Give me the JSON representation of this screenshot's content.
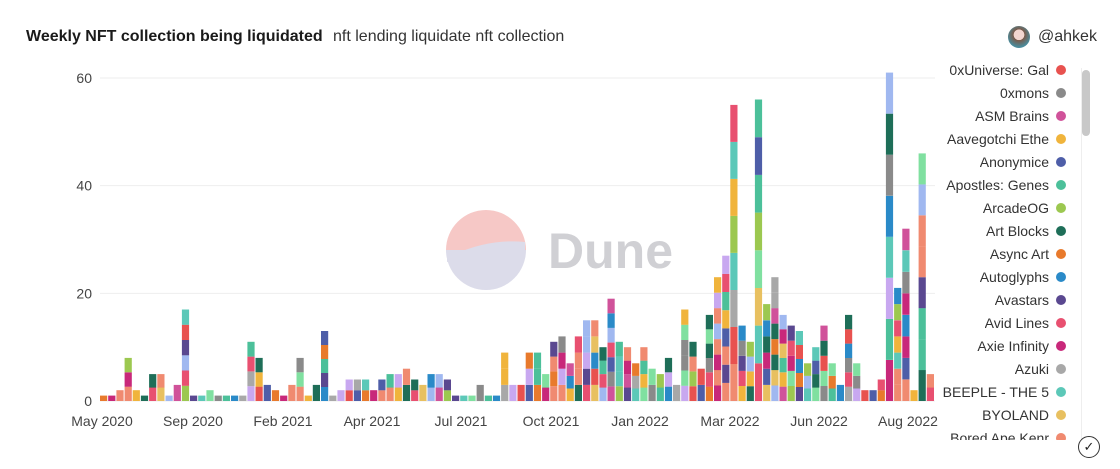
{
  "header": {
    "title": "Weekly NFT collection being liquidated",
    "subtitle": "nft lending liquidate nft collection",
    "author": "@ahkek"
  },
  "watermark": "Dune",
  "legend": [
    {
      "name": "0xUniverse: Gal",
      "color": "#e8524f"
    },
    {
      "name": "0xmons",
      "color": "#8a8a8a"
    },
    {
      "name": "ASM Brains",
      "color": "#d0529a"
    },
    {
      "name": "Aavegotchi Ethe",
      "color": "#f0b43c"
    },
    {
      "name": "Anonymice",
      "color": "#4e5ea8"
    },
    {
      "name": "Apostles: Genes",
      "color": "#4cc09a"
    },
    {
      "name": "ArcadeOG",
      "color": "#9cc850"
    },
    {
      "name": "Art Blocks",
      "color": "#1e6e58"
    },
    {
      "name": "Async Art",
      "color": "#e87a2c"
    },
    {
      "name": "Autoglyphs",
      "color": "#2a8ac8"
    },
    {
      "name": "Avastars",
      "color": "#5a4890"
    },
    {
      "name": "Avid Lines",
      "color": "#e85070"
    },
    {
      "name": "Axie Infinity",
      "color": "#c8287a"
    },
    {
      "name": "Azuki",
      "color": "#a8a8a8"
    },
    {
      "name": "BEEPLE - THE 5",
      "color": "#5cc8b8"
    },
    {
      "name": "BYOLAND",
      "color": "#e8c060"
    },
    {
      "name": "Bored Ape Kenr",
      "color": "#f08a70"
    }
  ],
  "chart_data": {
    "type": "bar",
    "stacked": true,
    "title": "Weekly NFT collection being liquidated",
    "xlabel": "",
    "ylabel": "",
    "ylim": [
      0,
      62
    ],
    "yticks": [
      0,
      20,
      40,
      60
    ],
    "xtick_labels": [
      "May 2020",
      "Sep 2020",
      "Feb 2021",
      "Apr 2021",
      "Jul 2021",
      "Oct 2021",
      "Jan 2022",
      "Mar 2022",
      "Jun 2022",
      "Aug 2022"
    ],
    "grid": true,
    "legend_position": "right",
    "weekly_totals": [
      1,
      1,
      2,
      8,
      2,
      1,
      5,
      5,
      1,
      3,
      17,
      1,
      1,
      2,
      1,
      1,
      1,
      1,
      11,
      8,
      3,
      2,
      1,
      3,
      8,
      1,
      3,
      13,
      1,
      2,
      4,
      4,
      4,
      2,
      4,
      5,
      5,
      6,
      4,
      3,
      5,
      5,
      4,
      1,
      1,
      1,
      3,
      1,
      1,
      9,
      3,
      3,
      9,
      9,
      5,
      11,
      12,
      7,
      12,
      15,
      15,
      10,
      19,
      11,
      10,
      7,
      10,
      6,
      5,
      8,
      3,
      17,
      11,
      6,
      16,
      23,
      27,
      55,
      14,
      11,
      56,
      18,
      23,
      16,
      14,
      13,
      7,
      10,
      14,
      7,
      3,
      16,
      7,
      2,
      2,
      4,
      61,
      21,
      32,
      2,
      46,
      5
    ]
  }
}
